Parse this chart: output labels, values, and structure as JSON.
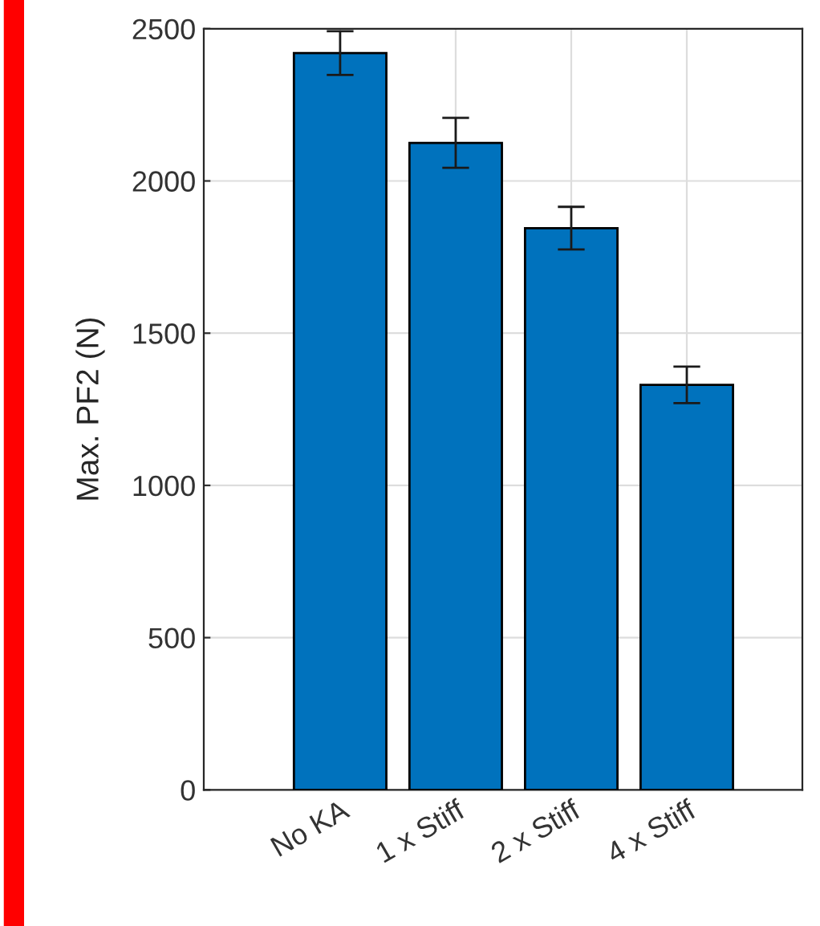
{
  "chart_data": {
    "type": "bar",
    "ylabel": "Max. PF2 (N)",
    "categories": [
      "No KA",
      "1 x Stiff",
      "2 x Stiff",
      "4 x Stiff"
    ],
    "values": [
      2420,
      2125,
      1845,
      1330
    ],
    "errors": [
      72,
      82,
      70,
      60
    ],
    "color": "#0072bd",
    "ylim": [
      0,
      2500
    ],
    "yticks": [
      0,
      500,
      1000,
      1500,
      2000,
      2500
    ],
    "grid": true
  }
}
